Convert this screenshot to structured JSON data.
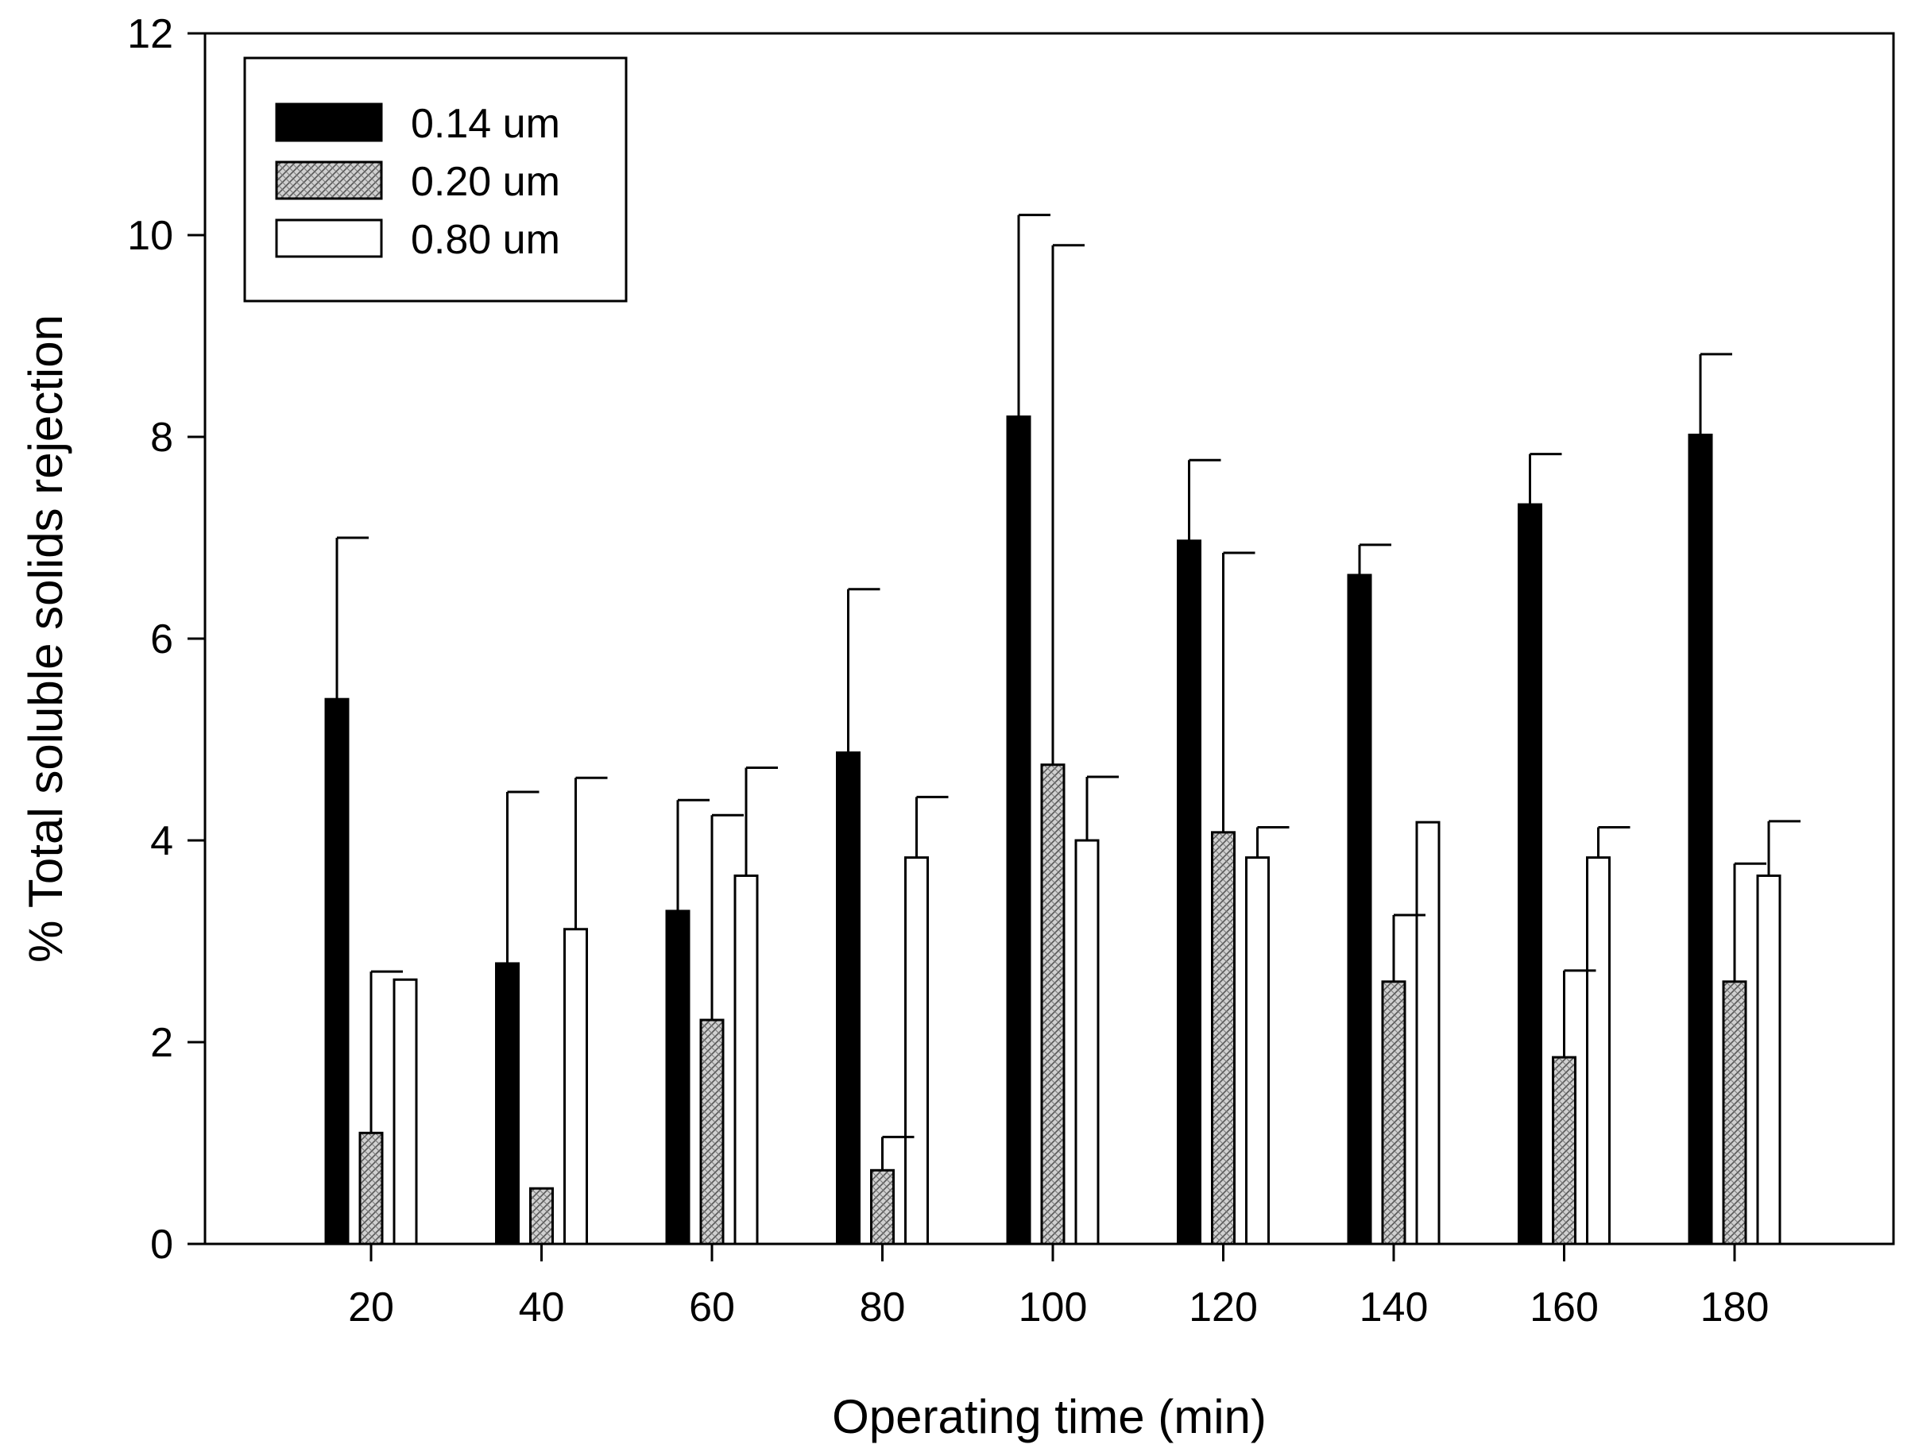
{
  "chart_data": {
    "type": "bar",
    "title": "",
    "xlabel": "Operating time (min)",
    "ylabel": "% Total soluble solids rejection",
    "categories": [
      "20",
      "40",
      "60",
      "80",
      "100",
      "120",
      "140",
      "160",
      "180"
    ],
    "ylim": [
      0,
      12
    ],
    "yticks": [
      "0",
      "2",
      "4",
      "6",
      "8",
      "10",
      "12"
    ],
    "grid": false,
    "legend_position": "top-left",
    "series": [
      {
        "name": "0.14 um",
        "fill": "#000000",
        "pattern": "solid",
        "values": [
          5.4,
          2.78,
          3.3,
          4.87,
          8.2,
          6.97,
          6.63,
          7.33,
          8.02
        ],
        "errors": [
          1.6,
          1.7,
          1.1,
          1.62,
          2.0,
          0.8,
          0.3,
          0.5,
          0.8
        ]
      },
      {
        "name": "0.20 um",
        "fill": "#c8c8c8",
        "pattern": "crosshatch",
        "values": [
          1.1,
          0.55,
          2.22,
          0.73,
          4.75,
          4.08,
          2.6,
          1.85,
          2.6
        ],
        "errors": [
          1.6,
          0.0,
          2.03,
          0.33,
          5.15,
          2.77,
          0.66,
          0.86,
          1.17
        ]
      },
      {
        "name": "0.80 um",
        "fill": "#ffffff",
        "pattern": "none",
        "values": [
          2.62,
          3.12,
          3.65,
          3.83,
          4.0,
          3.83,
          4.18,
          3.83,
          3.65
        ],
        "errors": [
          0.0,
          1.5,
          1.07,
          0.6,
          0.63,
          0.3,
          0.0,
          0.3,
          0.54
        ]
      }
    ]
  }
}
